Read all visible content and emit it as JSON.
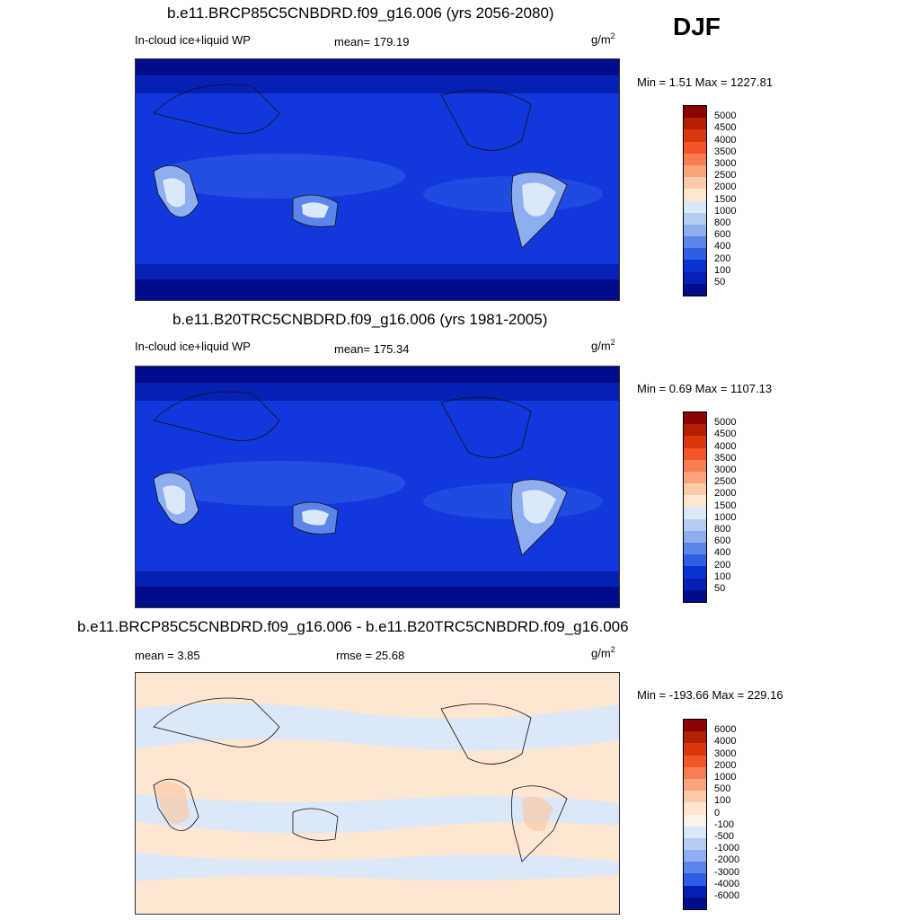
{
  "season": "DJF",
  "panels": [
    {
      "title": "b.e11.BRCP85C5CNBDRD.f09_g16.006 (yrs 2056-2080)",
      "left_label": "In-cloud ice+liquid WP",
      "center_label": "mean= 179.19",
      "units_base": "g/m",
      "units_exp": "2",
      "minmax": "Min =   1.51 Max = 1227.81",
      "ocean_color": "#1238dd",
      "legend_labels": [
        "5000",
        "4500",
        "4000",
        "3500",
        "3000",
        "2500",
        "2000",
        "1500",
        "1000",
        "800",
        "600",
        "400",
        "200",
        "100",
        "50"
      ],
      "legend_colors": [
        "#8b0000",
        "#b22000",
        "#d8380c",
        "#f25527",
        "#f77e52",
        "#f9a47c",
        "#fbcaa9",
        "#fde6d2",
        "#dbe8f8",
        "#b6cbf2",
        "#8eaef0",
        "#5c85ea",
        "#2e5ee4",
        "#0b32d0",
        "#0520b2",
        "#000c8a"
      ]
    },
    {
      "title": "b.e11.B20TRC5CNBDRD.f09_g16.006 (yrs 1981-2005)",
      "left_label": "In-cloud ice+liquid WP",
      "center_label": "mean= 175.34",
      "units_base": "g/m",
      "units_exp": "2",
      "minmax": "Min =   0.69 Max = 1107.13",
      "ocean_color": "#1238dd",
      "legend_labels": [
        "5000",
        "4500",
        "4000",
        "3500",
        "3000",
        "2500",
        "2000",
        "1500",
        "1000",
        "800",
        "600",
        "400",
        "200",
        "100",
        "50"
      ],
      "legend_colors": [
        "#8b0000",
        "#b22000",
        "#d8380c",
        "#f25527",
        "#f77e52",
        "#f9a47c",
        "#fbcaa9",
        "#fde6d2",
        "#dbe8f8",
        "#b6cbf2",
        "#8eaef0",
        "#5c85ea",
        "#2e5ee4",
        "#0b32d0",
        "#0520b2",
        "#000c8a"
      ]
    },
    {
      "title": "b.e11.BRCP85C5CNBDRD.f09_g16.006 - b.e11.B20TRC5CNBDRD.f09_g16.006",
      "left_label": "mean =   3.85",
      "center_label": "rmse =  25.68",
      "units_base": "g/m",
      "units_exp": "2",
      "minmax": "Min = -193.66 Max = 229.16",
      "ocean_color": "#fde6d2",
      "legend_labels": [
        "6000",
        "4000",
        "3000",
        "2000",
        "1000",
        "500",
        "100",
        "0",
        "-100",
        "-500",
        "-1000",
        "-2000",
        "-3000",
        "-4000",
        "-6000"
      ],
      "legend_colors": [
        "#8b0000",
        "#b22000",
        "#d8380c",
        "#f25527",
        "#f77e52",
        "#f9a47c",
        "#fbcaa9",
        "#fde6d2",
        "#fdf2e8",
        "#dbe8f8",
        "#b6cbf2",
        "#8eaef0",
        "#5c85ea",
        "#2e5ee4",
        "#0520b2",
        "#000c8a"
      ]
    }
  ]
}
